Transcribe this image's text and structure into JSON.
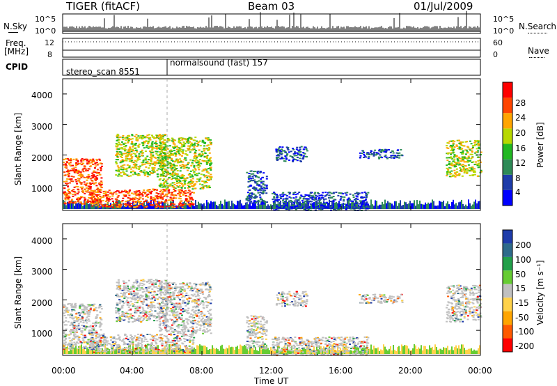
{
  "header": {
    "station": "TIGER (fitACF)",
    "beam": "Beam 03",
    "date": "01/Jul/2009"
  },
  "left_labels": {
    "nsky": "N.Sky",
    "freq": "Freq.",
    "mhz": "[MHz]",
    "cpid": "CPID",
    "nsky_hi": "10^5",
    "nsky_lo": "10^0",
    "freq_hi": "12",
    "freq_lo": "8"
  },
  "right_labels": {
    "nsearch": "N.Search",
    "nave": "Nave",
    "nsearch_hi": "10^5",
    "nsearch_lo": "10^0",
    "nave_hi": "60",
    "nave_lo": "0"
  },
  "cpid": {
    "seg1": "stereo_scan 8551",
    "seg2": "normalsound (fast) 157"
  },
  "power_panel": {
    "ylabel": "Slant Range [km]",
    "yticks": [
      "1000",
      "2000",
      "3000",
      "4000"
    ],
    "cbar_label": "Power [dB]",
    "cbar_ticks": [
      "4",
      "8",
      "12",
      "16",
      "20",
      "24",
      "28"
    ],
    "cbar_colors": [
      "#0000ff",
      "#1e3caa",
      "#2e8b57",
      "#22b822",
      "#b8d800",
      "#ffa500",
      "#ff4500",
      "#ff0000"
    ]
  },
  "velocity_panel": {
    "ylabel": "Slant Range [km]",
    "yticks": [
      "1000",
      "2000",
      "3000",
      "4000"
    ],
    "cbar_label": "Velocity [m s⁻¹]",
    "cbar_ticks": [
      "200",
      "100",
      "50",
      "15",
      "-15",
      "-50",
      "-100",
      "-200"
    ],
    "cbar_colors": [
      "#1e3caa",
      "#2e6b8b",
      "#22a04a",
      "#66cc33",
      "#c0c0c0",
      "#ffd24a",
      "#ffa500",
      "#ff5a00",
      "#ff0000"
    ]
  },
  "xaxis": {
    "ticks": [
      "00:00",
      "04:00",
      "08:00",
      "12:00",
      "16:00",
      "20:00",
      "00:00"
    ],
    "label": "Time UT"
  },
  "chart_data": {
    "type": "heatmap",
    "x_range_hours": [
      0,
      24
    ],
    "y_range_km": [
      180,
      4500
    ],
    "blobs": [
      {
        "t0": 0.0,
        "t1": 2.2,
        "r0": 400,
        "r1": 1900,
        "pw": "high"
      },
      {
        "t0": 1.5,
        "t1": 7.5,
        "r0": 300,
        "r1": 900,
        "pw": "high"
      },
      {
        "t0": 3.0,
        "t1": 6.0,
        "r0": 1300,
        "r1": 2700,
        "pw": "mid"
      },
      {
        "t0": 5.5,
        "t1": 8.5,
        "r0": 900,
        "r1": 2600,
        "pw": "mid"
      },
      {
        "t0": 10.5,
        "t1": 11.7,
        "r0": 400,
        "r1": 1500,
        "pw": "low"
      },
      {
        "t0": 12.0,
        "t1": 17.5,
        "r0": 200,
        "r1": 800,
        "pw": "low"
      },
      {
        "t0": 12.2,
        "t1": 14.0,
        "r0": 1800,
        "r1": 2300,
        "pw": "low"
      },
      {
        "t0": 17.0,
        "t1": 19.5,
        "r0": 1900,
        "r1": 2200,
        "pw": "low"
      },
      {
        "t0": 22.0,
        "t1": 24.0,
        "r0": 1300,
        "r1": 2500,
        "pw": "mid"
      }
    ]
  }
}
